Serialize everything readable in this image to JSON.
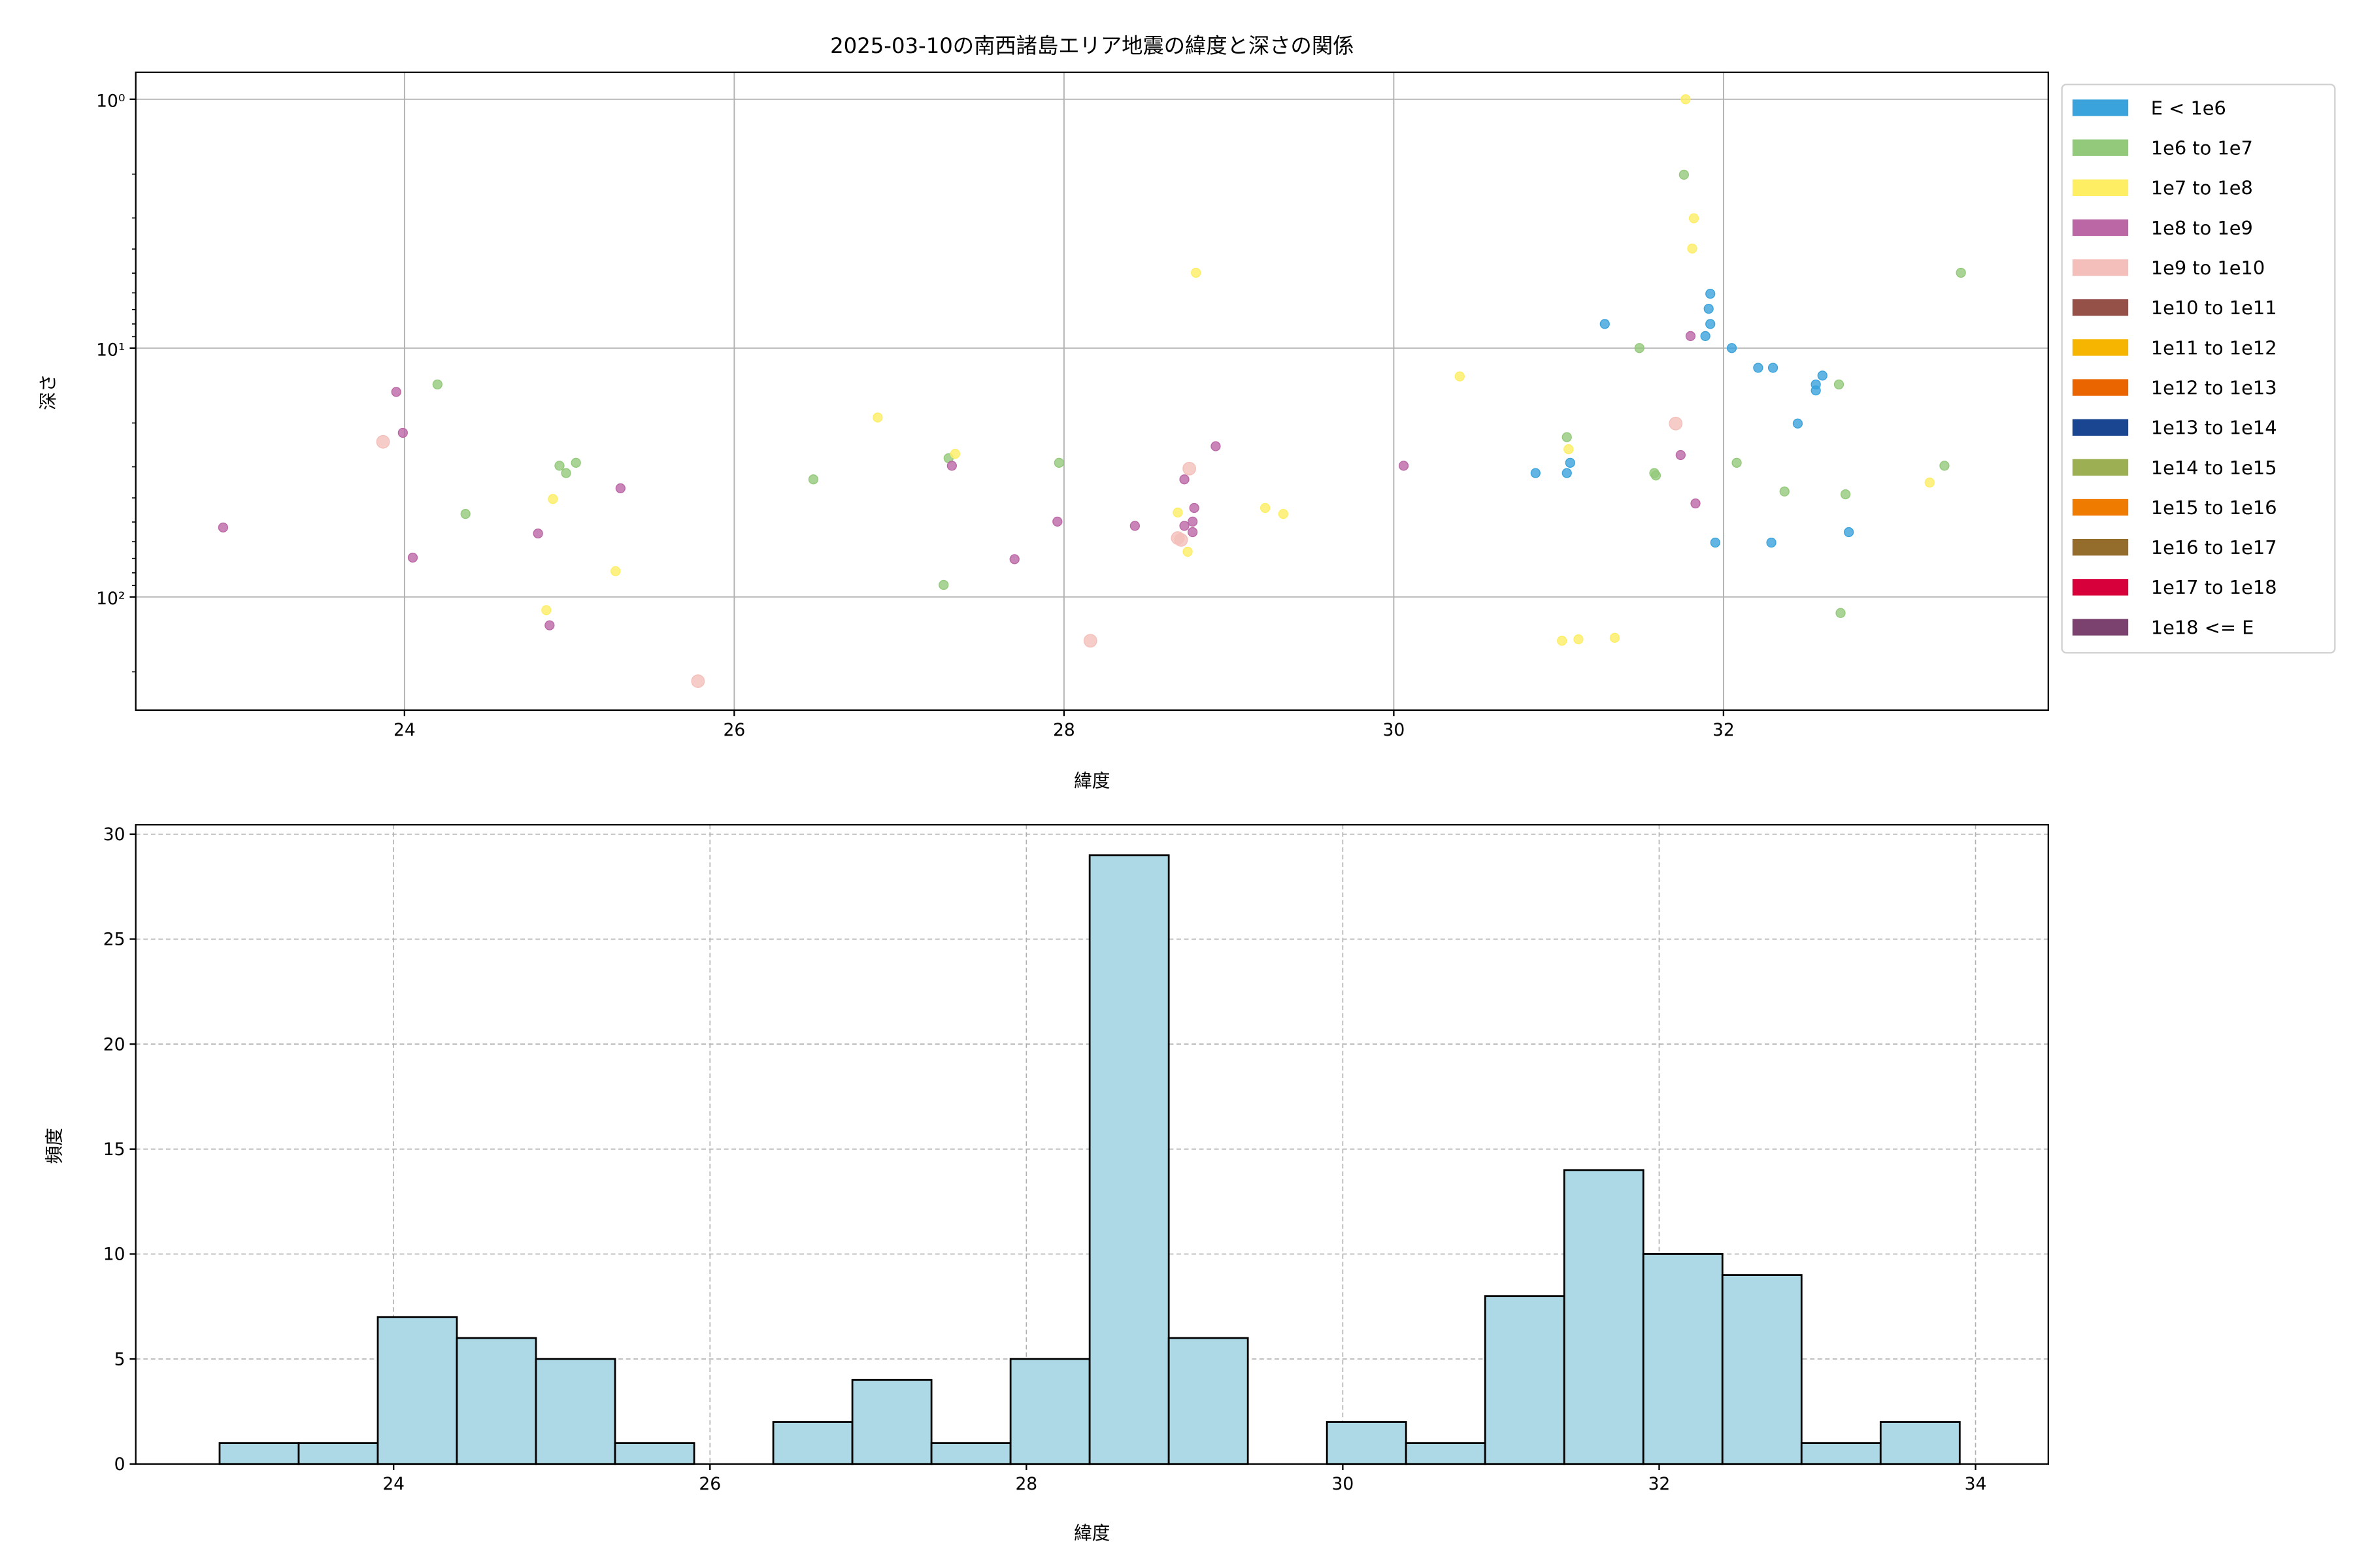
{
  "chart_data": [
    {
      "type": "scatter",
      "title": "2025-03-10の南西諸島エリア地震の緯度と深さの関係",
      "xlabel": "緯度",
      "ylabel": "深さ",
      "xlim": [
        22.37,
        33.97
      ],
      "ylim": [
        285,
        0.78
      ],
      "yscale": "log",
      "y_inverted": true,
      "grid": true,
      "xticks": [
        "24",
        "26",
        "28",
        "30",
        "32"
      ],
      "yticks": [
        {
          "value": 1,
          "label": "10⁰"
        },
        {
          "value": 10,
          "label": "10¹"
        },
        {
          "value": 100,
          "label": "10²"
        }
      ],
      "legend_position": "outside-right",
      "legend": [
        {
          "label": "E < 1e6",
          "color": "#3ba3dc"
        },
        {
          "label": "1e6 to 1e7",
          "color": "#93c97a"
        },
        {
          "label": "1e7 to 1e8",
          "color": "#fdee64"
        },
        {
          "label": "1e8 to 1e9",
          "color": "#bb67a6"
        },
        {
          "label": "1e9 to 1e10",
          "color": "#f4bfba"
        },
        {
          "label": "1e10 to 1e11",
          "color": "#955048"
        },
        {
          "label": "1e11 to 1e12",
          "color": "#f5b500"
        },
        {
          "label": "1e12 to 1e13",
          "color": "#ea6400"
        },
        {
          "label": "1e13 to 1e14",
          "color": "#1a4590"
        },
        {
          "label": "1e14 to 1e15",
          "color": "#9caf52"
        },
        {
          "label": "1e15 to 1e16",
          "color": "#ef7c00"
        },
        {
          "label": "1e16 to 1e17",
          "color": "#946d2d"
        },
        {
          "label": "1e17 to 1e18",
          "color": "#d8003b"
        },
        {
          "label": "1e18 <= E",
          "color": "#7c426f"
        }
      ],
      "series": [
        {
          "category": "E < 1e6",
          "points": [
            [
              30.86,
              31.8
            ],
            [
              31.07,
              28.9
            ],
            [
              31.05,
              31.8
            ],
            [
              31.28,
              8.0
            ],
            [
              31.92,
              6.05
            ],
            [
              31.91,
              6.95
            ],
            [
              31.92,
              8.0
            ],
            [
              31.89,
              8.95
            ],
            [
              32.05,
              10
            ],
            [
              32.21,
              12
            ],
            [
              32.3,
              12
            ],
            [
              32.6,
              12.9
            ],
            [
              32.56,
              14.0
            ],
            [
              32.56,
              14.8
            ],
            [
              32.45,
              20.1
            ],
            [
              31.95,
              60.5
            ],
            [
              32.29,
              60.5
            ],
            [
              32.76,
              54.9
            ]
          ]
        },
        {
          "category": "1e6 to 1e7",
          "points": [
            [
              24.2,
              14.0
            ],
            [
              24.37,
              46.4
            ],
            [
              24.94,
              29.7
            ],
            [
              24.98,
              31.8
            ],
            [
              25.04,
              28.9
            ],
            [
              26.48,
              33.7
            ],
            [
              27.27,
              89.5
            ],
            [
              27.3,
              27.7
            ],
            [
              27.97,
              28.9
            ],
            [
              31.05,
              22.8
            ],
            [
              31.49,
              10
            ],
            [
              31.58,
              31.8
            ],
            [
              31.59,
              32.5
            ],
            [
              31.76,
              2.01
            ],
            [
              32.08,
              28.9
            ],
            [
              32.37,
              37.7
            ],
            [
              32.7,
              14.0
            ],
            [
              32.74,
              38.7
            ],
            [
              32.71,
              116
            ],
            [
              33.34,
              29.7
            ],
            [
              33.44,
              4.98
            ]
          ]
        },
        {
          "category": "1e7 to 1e8",
          "points": [
            [
              24.9,
              40.4
            ],
            [
              24.86,
              113
            ],
            [
              25.28,
              78.8
            ],
            [
              26.87,
              19.0
            ],
            [
              27.34,
              26.6
            ],
            [
              28.69,
              45.8
            ],
            [
              28.75,
              65.8
            ],
            [
              28.8,
              4.98
            ],
            [
              29.22,
              43.9
            ],
            [
              29.33,
              46.4
            ],
            [
              30.4,
              13.0
            ],
            [
              31.06,
              25.5
            ],
            [
              31.02,
              150
            ],
            [
              31.12,
              148
            ],
            [
              31.34,
              146
            ],
            [
              31.77,
              1.0
            ],
            [
              31.82,
              3.01
            ],
            [
              31.81,
              3.98
            ],
            [
              33.25,
              34.7
            ]
          ]
        },
        {
          "category": "1e8 to 1e9",
          "points": [
            [
              22.9,
              52.6
            ],
            [
              23.95,
              15.0
            ],
            [
              23.99,
              21.9
            ],
            [
              24.05,
              69.5
            ],
            [
              24.81,
              55.6
            ],
            [
              24.88,
              130
            ],
            [
              25.31,
              36.6
            ],
            [
              27.32,
              29.7
            ],
            [
              27.7,
              70.5
            ],
            [
              27.96,
              49.8
            ],
            [
              28.43,
              51.8
            ],
            [
              28.73,
              33.7
            ],
            [
              28.79,
              43.9
            ],
            [
              28.78,
              49.8
            ],
            [
              28.73,
              51.8
            ],
            [
              28.78,
              54.9
            ],
            [
              28.92,
              24.8
            ],
            [
              30.06,
              29.7
            ],
            [
              31.74,
              26.9
            ],
            [
              31.8,
              8.95
            ],
            [
              31.83,
              42.1
            ]
          ]
        },
        {
          "category": "1e9 to 1e10",
          "points": [
            [
              23.87,
              23.8
            ],
            [
              25.78,
              218
            ],
            [
              28.16,
              150
            ],
            [
              28.76,
              30.5
            ],
            [
              28.69,
              58
            ],
            [
              28.71,
              59
            ],
            [
              31.71,
              20.1
            ]
          ]
        }
      ]
    },
    {
      "type": "bar",
      "subtype": "histogram",
      "xlabel": "緯度",
      "ylabel": "頻度",
      "xlim": [
        22.37,
        34.46
      ],
      "ylim": [
        0,
        30.45
      ],
      "grid": true,
      "grid_style": "dashed",
      "fill_color": "#add8e6",
      "edge_color": "#000000",
      "xticks": [
        "24",
        "26",
        "28",
        "30",
        "32",
        "34"
      ],
      "yticks": [
        "0",
        "5",
        "10",
        "15",
        "20",
        "25",
        "30"
      ],
      "bin_start": 22.9,
      "bin_width": 0.5,
      "counts": [
        1,
        1,
        7,
        6,
        5,
        1,
        0,
        2,
        4,
        1,
        5,
        29,
        6,
        0,
        2,
        1,
        8,
        14,
        10,
        9,
        1,
        2
      ]
    }
  ]
}
